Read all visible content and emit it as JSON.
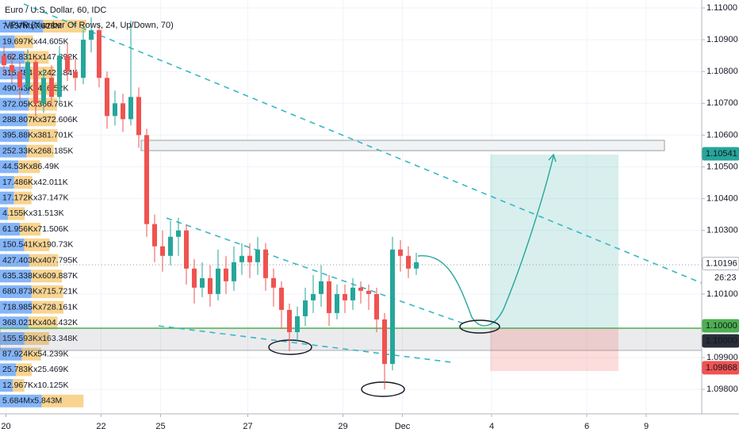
{
  "chart_data": {
    "type": "candlestick",
    "title": "Euro / U.S. Dollar, 60, IDC",
    "subtitle": "VPVR (Number Of Rows, 24, Up/Down, 70)",
    "up_color": "#26a69a",
    "down_color": "#ef5350",
    "grid": true,
    "xlim": [
      0,
      354
    ],
    "xticks": [
      {
        "value": 3,
        "label": "20"
      },
      {
        "value": 51,
        "label": "22"
      },
      {
        "value": 81,
        "label": "25"
      },
      {
        "value": 125,
        "label": "27"
      },
      {
        "value": 173,
        "label": "29"
      },
      {
        "value": 203,
        "label": "Dec"
      },
      {
        "value": 248,
        "label": "4"
      },
      {
        "value": 296,
        "label": "6"
      },
      {
        "value": 326,
        "label": "9"
      }
    ],
    "ylim": [
      1.09728,
      1.11025
    ],
    "yticks": [
      {
        "value": 1.11,
        "label": "1.11000"
      },
      {
        "value": 1.109,
        "label": "1.10900"
      },
      {
        "value": 1.108,
        "label": "1.10800"
      },
      {
        "value": 1.107,
        "label": "1.10700"
      },
      {
        "value": 1.106,
        "label": "1.10600"
      },
      {
        "value": 1.105,
        "label": "1.10500"
      },
      {
        "value": 1.104,
        "label": "1.10400"
      },
      {
        "value": 1.103,
        "label": "1.10300"
      },
      {
        "value": 1.101,
        "label": "1.10100"
      },
      {
        "value": 1.099,
        "label": "1.09900"
      },
      {
        "value": 1.098,
        "label": "1.09800"
      }
    ],
    "x": [
      2,
      6,
      10,
      14,
      18,
      22,
      26,
      30,
      34,
      38,
      42,
      46,
      50,
      54,
      58,
      62,
      66,
      70,
      74,
      78,
      82,
      86,
      90,
      94,
      98,
      102,
      106,
      110,
      114,
      118,
      122,
      126,
      130,
      134,
      138,
      142,
      146,
      150,
      154,
      158,
      162,
      166,
      170,
      174,
      178,
      182,
      186,
      190,
      194,
      198,
      202,
      206,
      210
    ],
    "open": [
      1.1085,
      1.1082,
      1.108,
      1.1075,
      1.1083,
      1.107,
      1.1078,
      1.1072,
      1.1085,
      1.108,
      1.1078,
      1.109,
      1.1093,
      1.1078,
      1.1066,
      1.107,
      1.1065,
      1.1072,
      1.106,
      1.1032,
      1.1025,
      1.1022,
      1.1028,
      1.103,
      1.1018,
      1.1012,
      1.1015,
      1.101,
      1.1018,
      1.1014,
      1.102,
      1.1022,
      1.102,
      1.1024,
      1.1015,
      1.1012,
      1.1005,
      1.0998,
      1.1003,
      1.1008,
      1.101,
      1.1014,
      1.1004,
      1.101,
      1.1008,
      1.1012,
      1.1011,
      1.101,
      1.1002,
      1.0988,
      1.1024,
      1.1022,
      1.1018
    ],
    "high": [
      1.1088,
      1.1086,
      1.1083,
      1.1087,
      1.1085,
      1.1081,
      1.1082,
      1.1088,
      1.1089,
      1.1084,
      1.1093,
      1.1097,
      1.1095,
      1.108,
      1.1074,
      1.1073,
      1.1096,
      1.1075,
      1.1062,
      1.1035,
      1.103,
      1.1033,
      1.1034,
      1.1032,
      1.1021,
      1.102,
      1.1019,
      1.1024,
      1.1022,
      1.1025,
      1.1026,
      1.1026,
      1.1028,
      1.1026,
      1.1018,
      1.1014,
      1.1007,
      1.1006,
      1.1012,
      1.1016,
      1.1019,
      1.1016,
      1.1013,
      1.1013,
      1.1015,
      1.1014,
      1.1013,
      1.1012,
      1.1004,
      1.1028,
      1.1027,
      1.1025,
      1.1023
    ],
    "low": [
      1.1079,
      1.1076,
      1.1071,
      1.1073,
      1.1066,
      1.1067,
      1.1069,
      1.107,
      1.1077,
      1.1074,
      1.1076,
      1.1086,
      1.1075,
      1.1062,
      1.1063,
      1.1061,
      1.1063,
      1.1056,
      1.1028,
      1.102,
      1.1017,
      1.1019,
      1.1022,
      1.1013,
      1.1007,
      1.1009,
      1.1006,
      1.1008,
      1.101,
      1.1011,
      1.1016,
      1.1015,
      1.1016,
      1.1011,
      1.1006,
      1.0999,
      1.0992,
      1.0995,
      1.1,
      1.1004,
      1.1006,
      1.1,
      1.1002,
      1.1004,
      1.1005,
      1.1007,
      1.1005,
      1.0998,
      1.098,
      1.0986,
      1.1017,
      1.1015,
      1.1016
    ],
    "close": [
      1.1082,
      1.108,
      1.1075,
      1.1083,
      1.107,
      1.1078,
      1.1072,
      1.1085,
      1.108,
      1.1078,
      1.109,
      1.1093,
      1.1078,
      1.1066,
      1.107,
      1.1065,
      1.1072,
      1.106,
      1.1032,
      1.1025,
      1.1022,
      1.1028,
      1.103,
      1.1018,
      1.1012,
      1.1015,
      1.101,
      1.1018,
      1.1014,
      1.102,
      1.1022,
      1.102,
      1.1024,
      1.1015,
      1.1012,
      1.1005,
      1.0998,
      1.1003,
      1.1008,
      1.101,
      1.1014,
      1.1004,
      1.101,
      1.1008,
      1.1012,
      1.1011,
      1.101,
      1.1002,
      1.0988,
      1.1024,
      1.1022,
      1.1018,
      1.102
    ],
    "price_markers": {
      "values": [
        1.10541,
        1.10196,
        1.1,
        1.1,
        1.09868
      ],
      "value_labels": [
        "1.10541",
        "1.10196",
        "1.10000",
        "1.10000",
        "1.09868"
      ],
      "colors": [
        "#26a69a",
        "#ffffff",
        "#4caf50",
        "#2a2e39",
        "#ef5350"
      ]
    },
    "countdown": "26:23",
    "volume_profile": {
      "up_color": "#5b9cf6",
      "down_color": "#f5c66b",
      "labels": [
        "7.637Mx7.628M",
        "19.697Kx44.605K",
        "162.831Kx147.892K",
        "315.484Kx242.484K",
        "490.43Kx416.52K",
        "372.05Kx366.761K",
        "288.807Kx372.606K",
        "395.88Kx381.701K",
        "252.33Kx268.185K",
        "44.53Kx86.49K",
        "17.486Kx42.011K",
        "17.172Kx37.147K",
        "4.155Kx31.513K",
        "61.956Kx71.506K",
        "150.541Kx190.73K",
        "427.403Kx407.795K",
        "635.338Kx609.887K",
        "680.873Kx715.721K",
        "718.985Kx728.161K",
        "368.021Kx404.432K",
        "155.593Kx163.348K",
        "87.924Kx54.239K",
        "25.783Kx25.469K",
        "12.967Kx10.125K",
        "5.684Mx5.843M"
      ],
      "up": [
        7637,
        19.697,
        162.831,
        315.484,
        490.43,
        372.05,
        288.807,
        395.88,
        252.33,
        44.53,
        17.486,
        17.172,
        4.155,
        61.956,
        150.541,
        427.403,
        635.338,
        680.873,
        718.985,
        368.021,
        155.593,
        87.924,
        25.783,
        12.967,
        5684
      ],
      "down": [
        7628,
        44.605,
        147.892,
        242.484,
        416.52,
        366.761,
        372.606,
        381.701,
        268.185,
        86.49,
        42.011,
        37.147,
        31.513,
        71.506,
        190.73,
        407.795,
        609.887,
        715.721,
        728.161,
        404.432,
        163.348,
        54.239,
        25.469,
        10.125,
        5843
      ]
    }
  }
}
